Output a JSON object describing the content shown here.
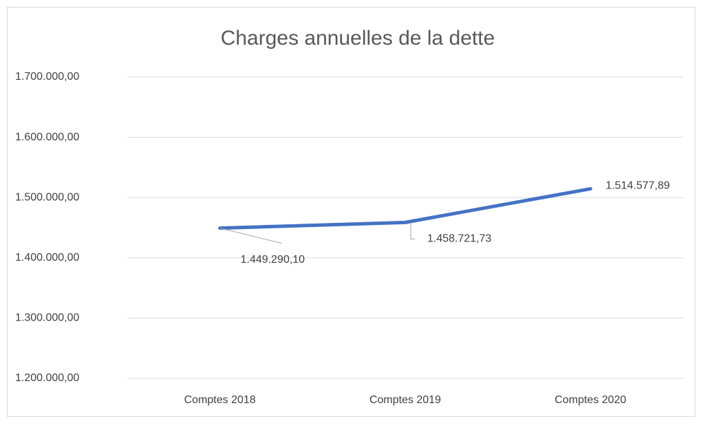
{
  "chart_data": {
    "type": "line",
    "title": "Charges annuelles de la dette",
    "categories": [
      "Comptes 2018",
      "Comptes 2019",
      "Comptes 2020"
    ],
    "series": [
      {
        "name": "Charges annuelles de la dette",
        "color": "#4472c4",
        "values": [
          1449290.1,
          1458721.73,
          1514577.89
        ],
        "value_labels": [
          "1.449.290,10",
          "1.458.721,73",
          "1.514.577,89"
        ]
      }
    ],
    "ylim": [
      1200000,
      1700000
    ],
    "yticks": [
      {
        "value": 1200000,
        "label": "1.200.000,00"
      },
      {
        "value": 1300000,
        "label": "1.300.000,00"
      },
      {
        "value": 1400000,
        "label": "1.400.000,00"
      },
      {
        "value": 1500000,
        "label": "1.500.000,00"
      },
      {
        "value": 1600000,
        "label": "1.600.000,00"
      },
      {
        "value": 1700000,
        "label": "1.700.000,00"
      }
    ],
    "grid": true
  }
}
